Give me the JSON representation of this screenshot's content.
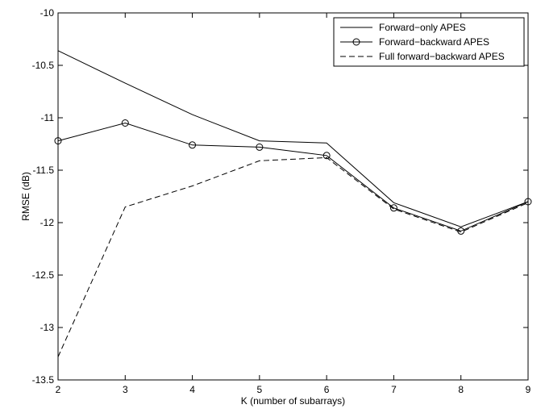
{
  "chart_data": {
    "type": "line",
    "xlabel": "K (number of subarrays)",
    "ylabel": "RMSE (dB)",
    "xlim": [
      2,
      9
    ],
    "ylim": [
      -13.5,
      -10
    ],
    "xticks": [
      2,
      3,
      4,
      5,
      6,
      7,
      8,
      9
    ],
    "xtick_labels": [
      "2",
      "3",
      "4",
      "5",
      "6",
      "7",
      "8",
      "9"
    ],
    "yticks": [
      -10,
      -10.5,
      -11,
      -11.5,
      -12,
      -12.5,
      -13,
      -13.5
    ],
    "ytick_labels": [
      "-10",
      "-10.5",
      "-11",
      "-11.5",
      "-12",
      "-12.5",
      "-13",
      "-13.5"
    ],
    "grid": false,
    "legend_position": "top-right",
    "x": [
      2,
      3,
      4,
      5,
      6,
      7,
      8,
      9
    ],
    "series": [
      {
        "name": "Forward−only APES",
        "values": [
          -10.36,
          -10.67,
          -10.97,
          -11.22,
          -11.24,
          -11.81,
          -12.04,
          -11.8
        ],
        "line_style": "solid",
        "marker": "none",
        "color": "#000000"
      },
      {
        "name": "Forward−backward APES",
        "values": [
          -11.22,
          -11.05,
          -11.26,
          -11.28,
          -11.36,
          -11.86,
          -12.08,
          -11.8
        ],
        "line_style": "solid",
        "marker": "circle",
        "color": "#000000"
      },
      {
        "name": "Full forward−backward APES",
        "values": [
          -13.28,
          -11.85,
          -11.65,
          -11.41,
          -11.38,
          -11.87,
          -12.09,
          -11.81
        ],
        "line_style": "dashed",
        "marker": "none",
        "color": "#000000"
      }
    ]
  }
}
